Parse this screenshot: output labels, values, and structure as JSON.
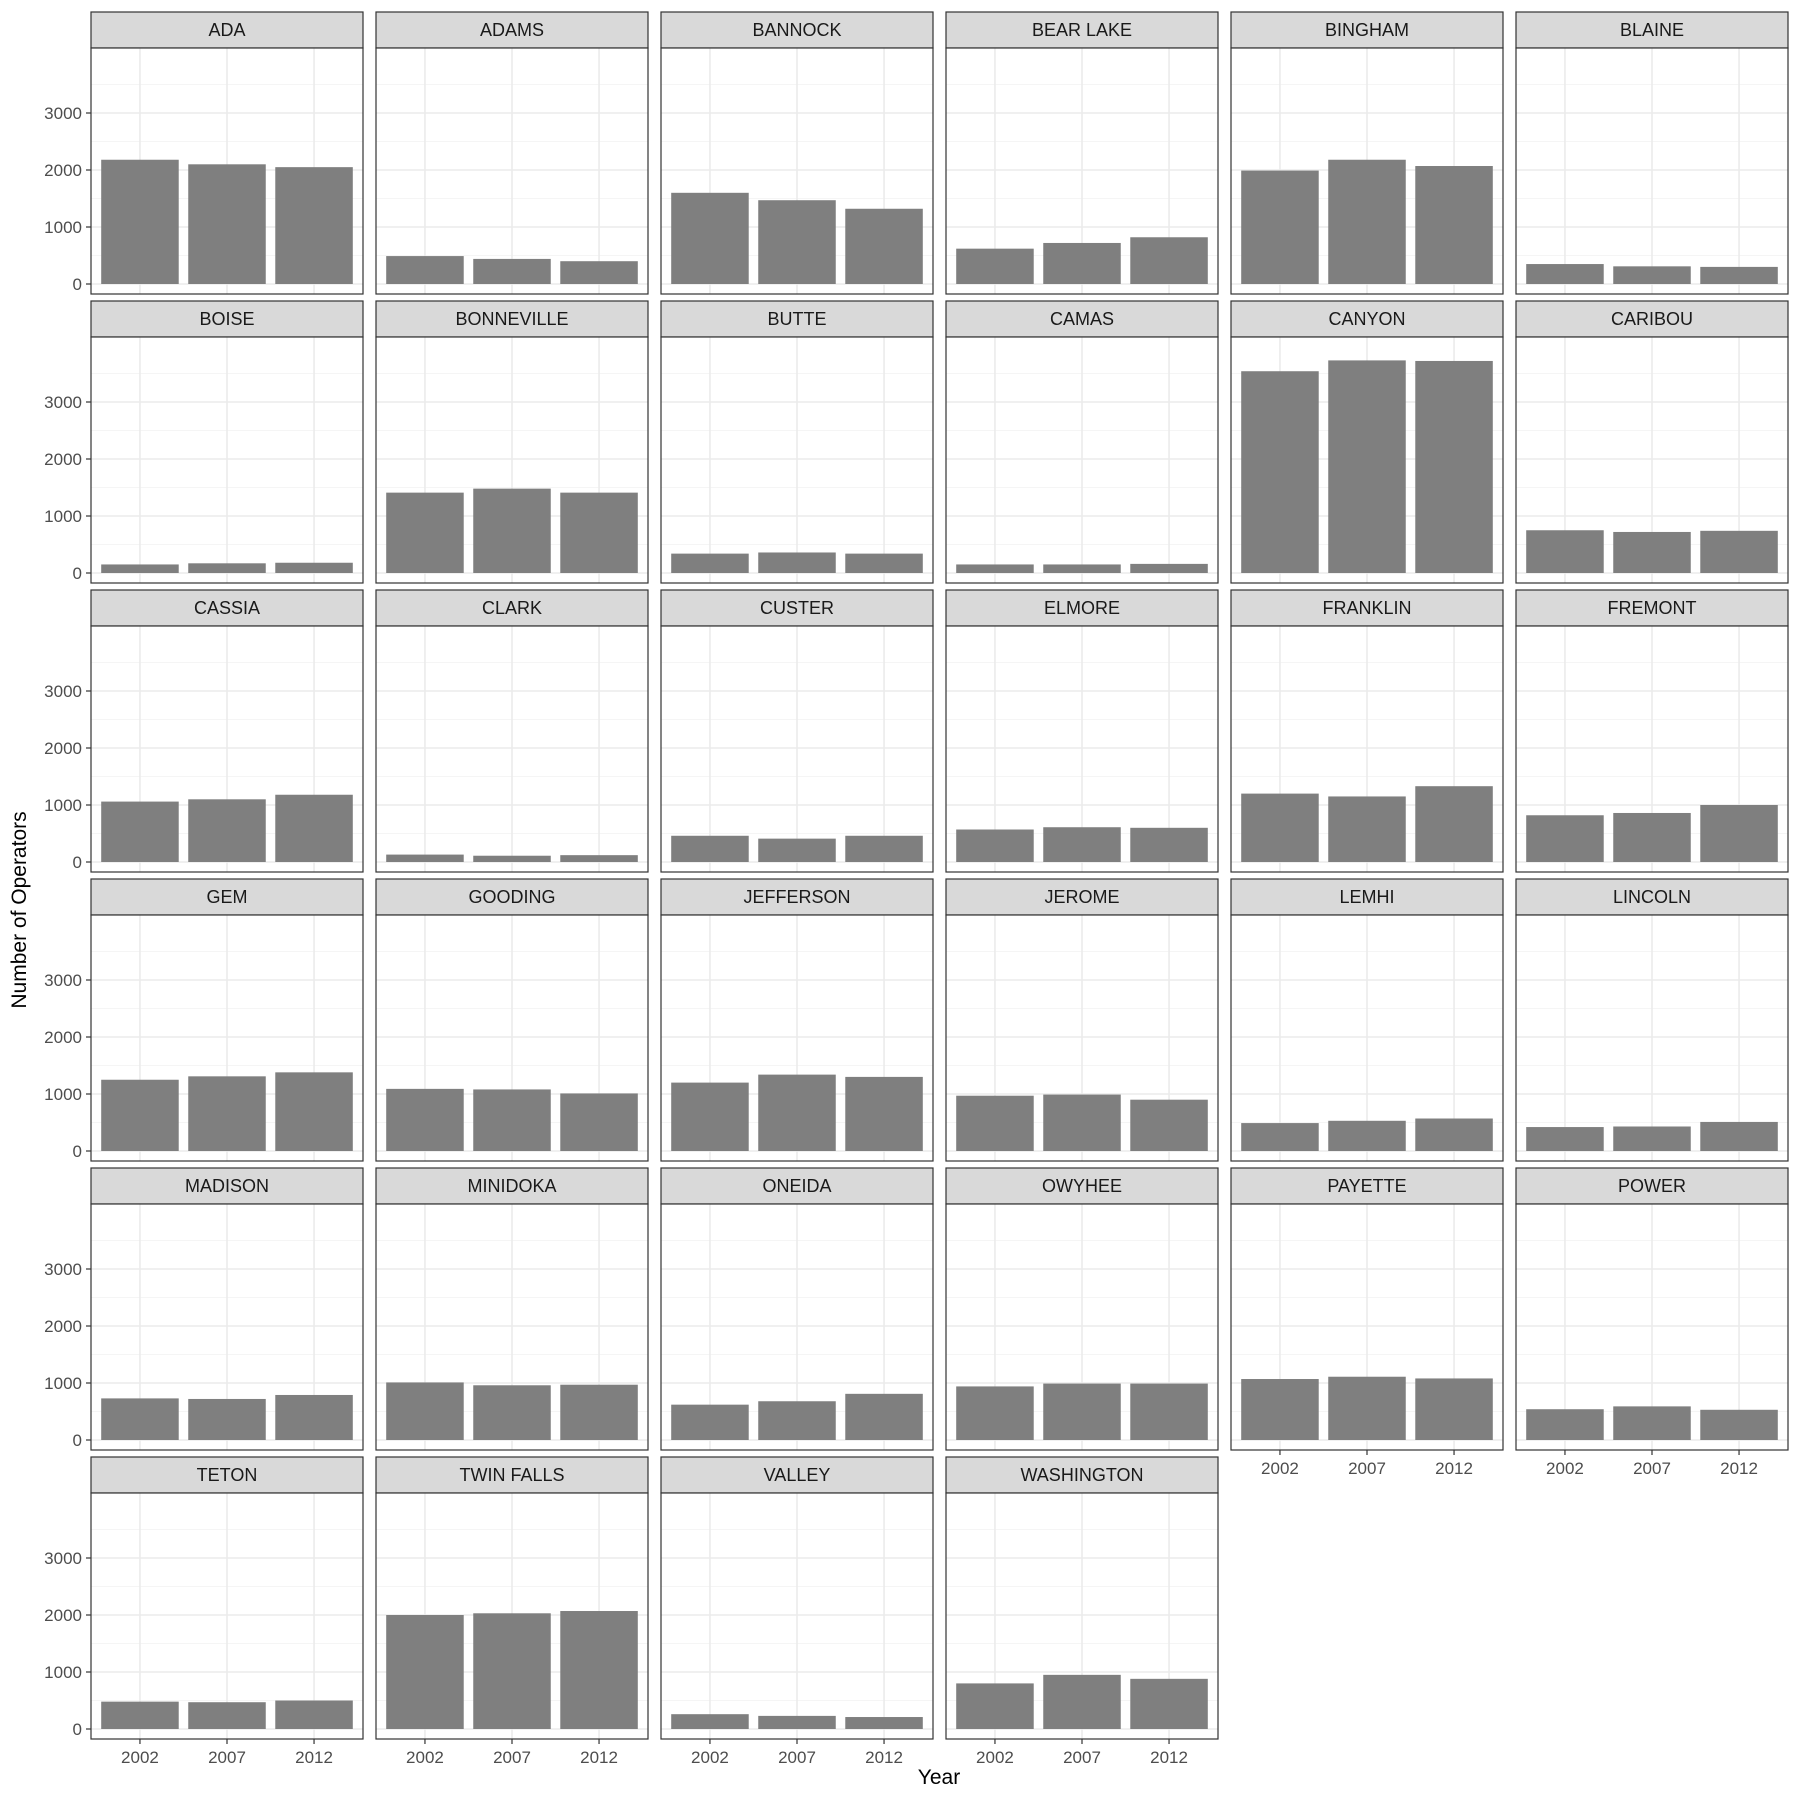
{
  "chart_data": {
    "type": "bar",
    "layout": "facet_wrap",
    "xlabel": "Year",
    "ylabel": "Number of Operators",
    "categories": [
      "2002",
      "2007",
      "2012"
    ],
    "y_ticks": [
      0,
      1000,
      2000,
      3000
    ],
    "ylim": [
      0,
      4000
    ],
    "grid": true,
    "colors": {
      "bar": "#7f7f7f",
      "strip_fill": "#d9d9d9",
      "panel_border": "#333333",
      "grid_major": "#ebebeb",
      "grid_minor": "#f5f5f5",
      "tick_text": "#4d4d4d"
    },
    "panels": [
      {
        "name": "ADA",
        "values": [
          2180,
          2100,
          2050
        ]
      },
      {
        "name": "ADAMS",
        "values": [
          490,
          440,
          400
        ]
      },
      {
        "name": "BANNOCK",
        "values": [
          1600,
          1470,
          1320
        ]
      },
      {
        "name": "BEAR LAKE",
        "values": [
          620,
          720,
          820
        ]
      },
      {
        "name": "BINGHAM",
        "values": [
          1990,
          2180,
          2070
        ]
      },
      {
        "name": "BLAINE",
        "values": [
          350,
          310,
          300
        ]
      },
      {
        "name": "BOISE",
        "values": [
          150,
          170,
          180
        ]
      },
      {
        "name": "BONNEVILLE",
        "values": [
          1410,
          1480,
          1410
        ]
      },
      {
        "name": "BUTTE",
        "values": [
          340,
          360,
          340
        ]
      },
      {
        "name": "CAMAS",
        "values": [
          150,
          150,
          160
        ]
      },
      {
        "name": "CANYON",
        "values": [
          3540,
          3730,
          3720
        ]
      },
      {
        "name": "CARIBOU",
        "values": [
          750,
          720,
          740
        ]
      },
      {
        "name": "CASSIA",
        "values": [
          1060,
          1100,
          1180
        ]
      },
      {
        "name": "CLARK",
        "values": [
          130,
          110,
          120
        ]
      },
      {
        "name": "CUSTER",
        "values": [
          460,
          410,
          460
        ]
      },
      {
        "name": "ELMORE",
        "values": [
          570,
          610,
          600
        ]
      },
      {
        "name": "FRANKLIN",
        "values": [
          1200,
          1150,
          1330
        ]
      },
      {
        "name": "FREMONT",
        "values": [
          820,
          860,
          1000
        ]
      },
      {
        "name": "GEM",
        "values": [
          1250,
          1310,
          1380
        ]
      },
      {
        "name": "GOODING",
        "values": [
          1090,
          1080,
          1010
        ]
      },
      {
        "name": "JEFFERSON",
        "values": [
          1200,
          1340,
          1300
        ]
      },
      {
        "name": "JEROME",
        "values": [
          970,
          990,
          900
        ]
      },
      {
        "name": "LEMHI",
        "values": [
          490,
          530,
          570
        ]
      },
      {
        "name": "LINCOLN",
        "values": [
          420,
          430,
          510
        ]
      },
      {
        "name": "MADISON",
        "values": [
          730,
          720,
          790
        ]
      },
      {
        "name": "MINIDOKA",
        "values": [
          1010,
          960,
          970
        ]
      },
      {
        "name": "ONEIDA",
        "values": [
          620,
          680,
          810
        ]
      },
      {
        "name": "OWYHEE",
        "values": [
          940,
          990,
          990
        ]
      },
      {
        "name": "PAYETTE",
        "values": [
          1070,
          1110,
          1080
        ]
      },
      {
        "name": "POWER",
        "values": [
          540,
          590,
          530
        ]
      },
      {
        "name": "TETON",
        "values": [
          480,
          470,
          500
        ]
      },
      {
        "name": "TWIN FALLS",
        "values": [
          2000,
          2030,
          2070
        ]
      },
      {
        "name": "VALLEY",
        "values": [
          260,
          230,
          210
        ]
      },
      {
        "name": "WASHINGTON",
        "values": [
          800,
          950,
          880
        ]
      }
    ]
  }
}
